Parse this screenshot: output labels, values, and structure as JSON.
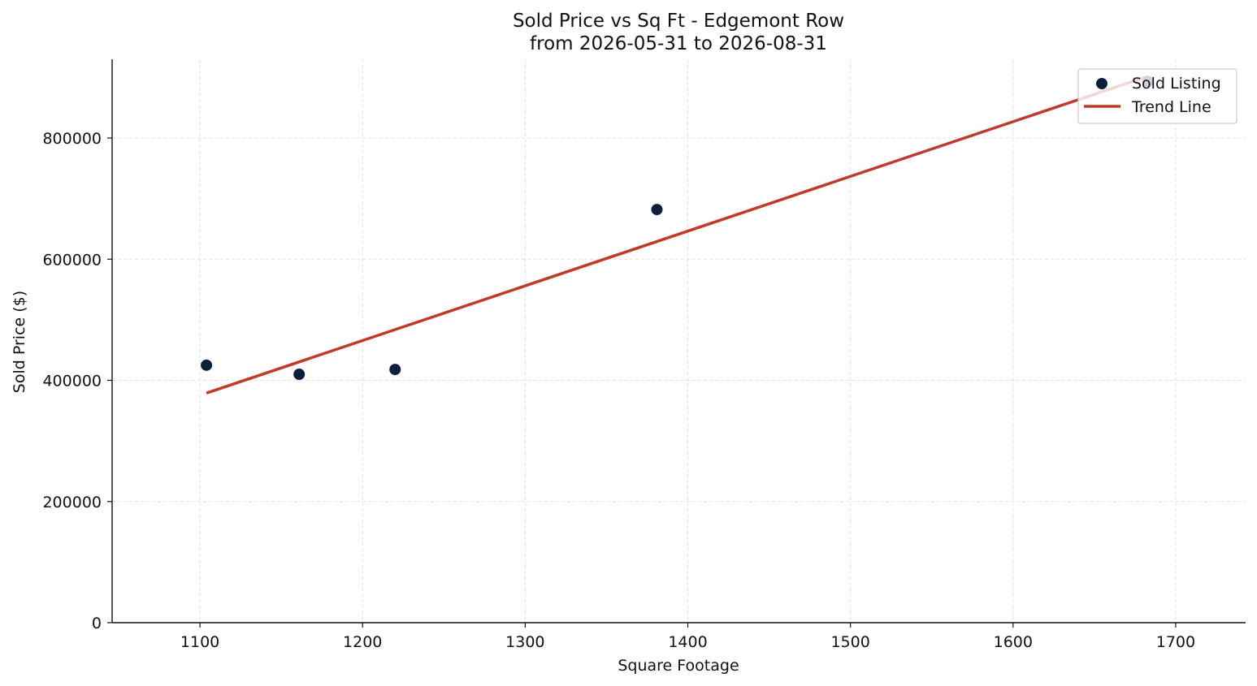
{
  "chart_data": {
    "type": "scatter",
    "title": "Sold Price vs Sq Ft - Edgemont Row",
    "subtitle": "from 2026-05-31 to 2026-08-31",
    "xlabel": "Square Footage",
    "ylabel": "Sold Price ($)",
    "xlim": [
      1046,
      1743
    ],
    "ylim": [
      0,
      930000
    ],
    "x_ticks": [
      "1100",
      "1200",
      "1300",
      "1400",
      "1500",
      "1600",
      "1700"
    ],
    "y_ticks": [
      "0",
      "200000",
      "400000",
      "600000",
      "800000"
    ],
    "grid": true,
    "legend_position": "top-right",
    "series": [
      {
        "name": "Sold Listing",
        "kind": "scatter",
        "color": "#0d1f3c",
        "points": [
          {
            "x": 1104,
            "y": 425000
          },
          {
            "x": 1161,
            "y": 410000
          },
          {
            "x": 1220,
            "y": 418000
          },
          {
            "x": 1381,
            "y": 682000
          },
          {
            "x": 1683,
            "y": 893000
          }
        ]
      },
      {
        "name": "Trend Line",
        "kind": "line",
        "color": "#c0392b",
        "points": [
          {
            "x": 1104,
            "y": 379000
          },
          {
            "x": 1683,
            "y": 902000
          }
        ]
      }
    ]
  }
}
